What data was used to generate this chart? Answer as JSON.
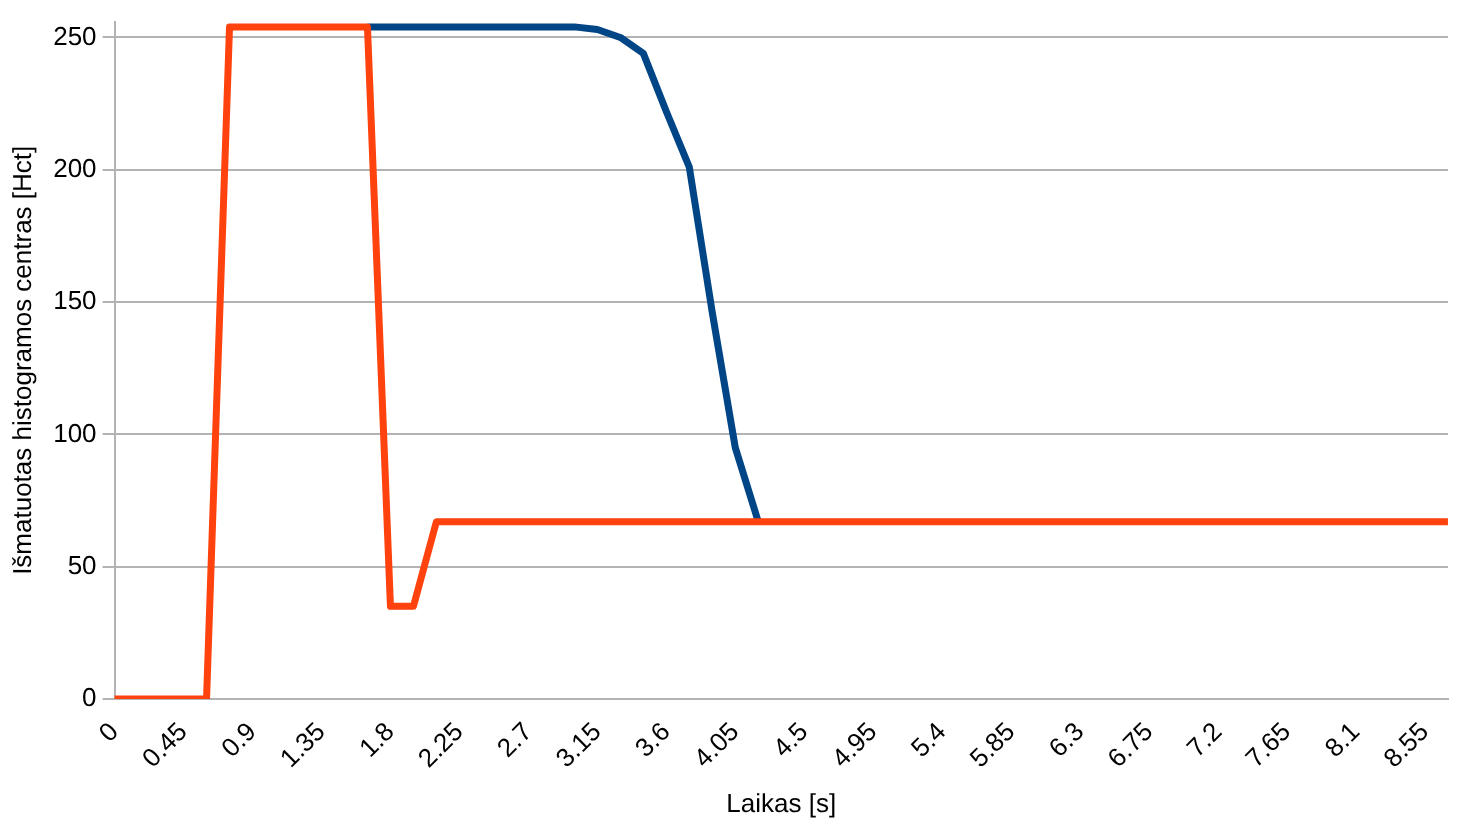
{
  "chart_data": {
    "type": "line",
    "xlabel": "Laikas [s]",
    "ylabel": "Išmatuotas histogramos centras [Hct]",
    "categories": [
      "0",
      null,
      null,
      "0.45",
      null,
      null,
      "0.9",
      null,
      null,
      "1.35",
      null,
      null,
      "1.8",
      null,
      null,
      "2.25",
      null,
      null,
      "2.7",
      null,
      null,
      "3.15",
      null,
      null,
      "3.6",
      null,
      null,
      "4.05",
      null,
      null,
      "4.5",
      null,
      null,
      "4.95",
      null,
      null,
      "5.4",
      null,
      null,
      "5.85",
      null,
      null,
      "6.3",
      null,
      null,
      "6.75",
      null,
      null,
      "7.2",
      null,
      null,
      "7.65",
      null,
      null,
      "8.1",
      null,
      null,
      "8.55",
      null
    ],
    "series": [
      {
        "color": "#004586",
        "values": [
          null,
          null,
          null,
          null,
          null,
          null,
          null,
          null,
          null,
          null,
          null,
          254,
          254,
          254,
          254,
          254,
          254,
          254,
          254,
          254,
          254,
          253,
          250,
          244,
          222,
          201,
          146,
          95,
          67,
          null,
          null,
          null,
          null,
          null,
          null,
          null,
          null,
          null,
          null,
          null,
          null,
          null,
          null,
          null,
          null,
          null,
          null,
          null,
          null,
          null,
          null,
          null,
          null,
          null,
          null,
          null,
          null,
          null,
          null
        ]
      },
      {
        "color": "#ff420e",
        "values": [
          0,
          0,
          0,
          0,
          0,
          254,
          254,
          254,
          254,
          254,
          254,
          254,
          35,
          35,
          67,
          67,
          67,
          67,
          67,
          67,
          67,
          67,
          67,
          67,
          67,
          67,
          67,
          67,
          67,
          67,
          67,
          67,
          67,
          67,
          67,
          67,
          67,
          67,
          67,
          67,
          67,
          67,
          67,
          67,
          67,
          67,
          67,
          67,
          67,
          67,
          67,
          67,
          67,
          67,
          67,
          67,
          67,
          67,
          67
        ]
      }
    ],
    "ylim": [
      0,
      256
    ],
    "yticks": [
      0,
      50,
      100,
      150,
      200,
      250
    ],
    "grid": "y",
    "legend": false,
    "marker": "none",
    "line_style": "solid"
  }
}
